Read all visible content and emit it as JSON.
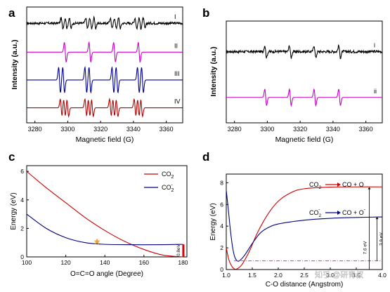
{
  "watermark": "知乎 @研青叔",
  "chart_data": [
    {
      "panel": "a",
      "type": "line",
      "xlabel": "Magnetic field (G)",
      "ylabel": "Intensity (a.u.)",
      "xlim": [
        3275,
        3370
      ],
      "x_ticks": [
        3280,
        3300,
        3320,
        3340,
        3360
      ],
      "series": [
        {
          "name": "I",
          "color": "#000000",
          "baseline": 0.86,
          "amp": 0.045,
          "noise": 0.02,
          "lines": [
            3296.5,
            3299,
            3301.5,
            3311.5,
            3314,
            3316.5,
            3326.5,
            3329,
            3331.5,
            3341.5,
            3344,
            3346.5
          ]
        },
        {
          "name": "II",
          "color": "#cc00cc",
          "baseline": 0.61,
          "amp": 0.085,
          "noise": 0,
          "lines": [
            3298.5,
            3313.5,
            3328.5,
            3343.5
          ]
        },
        {
          "name": "III",
          "color": "#000099",
          "baseline": 0.37,
          "amp": 0.11,
          "noise": 0,
          "lines": [
            3295,
            3297.5,
            3311,
            3313.5,
            3327.5,
            3330,
            3343,
            3345.5
          ]
        },
        {
          "name": "IV",
          "color": "#b30000",
          "baseline": 0.13,
          "amp": 0.075,
          "noise": 0,
          "lines": [
            3296,
            3298,
            3300,
            3311,
            3313,
            3315,
            3326,
            3328,
            3330,
            3341,
            3343,
            3345
          ]
        }
      ]
    },
    {
      "panel": "b",
      "type": "line",
      "xlabel": "Magnetic field (G)",
      "ylabel": "Intensity (a.u.)",
      "xlim": [
        3275,
        3370
      ],
      "x_ticks": [
        3280,
        3300,
        3320,
        3340,
        3360
      ],
      "series": [
        {
          "name": "i",
          "color": "#000000",
          "baseline": 0.7,
          "amp": 0.06,
          "noise": 0.025,
          "lines": [
            3299,
            3314,
            3329,
            3344
          ]
        },
        {
          "name": "ii",
          "color": "#cc00cc",
          "baseline": 0.25,
          "amp": 0.08,
          "noise": 0,
          "lines": [
            3299,
            3314,
            3329,
            3344
          ]
        }
      ]
    },
    {
      "panel": "c",
      "type": "line",
      "xlabel": "O=C=O angle (Degree)",
      "ylabel": "Energy (eV)",
      "xlim": [
        100,
        182
      ],
      "ylim": [
        0,
        6.4
      ],
      "x_ticks": [
        100,
        120,
        140,
        160,
        180
      ],
      "y_ticks": [
        0,
        2,
        4,
        6
      ],
      "legend": [
        "CO2",
        "CO2-"
      ],
      "series": [
        {
          "name": "CO2",
          "color": "#cc0000",
          "points": [
            [
              100,
              6.0
            ],
            [
              110,
              4.85
            ],
            [
              120,
              3.8
            ],
            [
              130,
              2.75
            ],
            [
              140,
              1.85
            ],
            [
              150,
              1.1
            ],
            [
              160,
              0.52
            ],
            [
              170,
              0.12
            ],
            [
              180,
              0.0
            ]
          ]
        },
        {
          "name": "CO2-",
          "color": "#000080",
          "points": [
            [
              100,
              3.0
            ],
            [
              110,
              2.0
            ],
            [
              120,
              1.35
            ],
            [
              130,
              1.0
            ],
            [
              140,
              0.88
            ],
            [
              150,
              0.86
            ],
            [
              160,
              0.85
            ],
            [
              170,
              0.86
            ],
            [
              180,
              0.88
            ]
          ]
        }
      ],
      "annotations": {
        "star": [
          136,
          1.07
        ],
        "gap_label": "0.8eV"
      }
    },
    {
      "panel": "d",
      "type": "line",
      "xlabel": "C-O distance (Angstrom)",
      "ylabel": "Energy (eV)",
      "xlim": [
        1.0,
        4.0
      ],
      "ylim": [
        0,
        8.8
      ],
      "x_ticks": [
        1.0,
        1.5,
        2.0,
        2.5,
        3.0,
        3.5,
        4.0
      ],
      "y_ticks": [
        0,
        2,
        4,
        6,
        8
      ],
      "series": [
        {
          "name": "CO2 → CO + O",
          "color": "#cc0000",
          "points": [
            [
              1.0,
              2.0
            ],
            [
              1.05,
              0.9
            ],
            [
              1.1,
              0.35
            ],
            [
              1.15,
              0.08
            ],
            [
              1.2,
              0.05
            ],
            [
              1.3,
              0.45
            ],
            [
              1.45,
              1.75
            ],
            [
              1.6,
              3.4
            ],
            [
              1.8,
              5.1
            ],
            [
              2.0,
              6.3
            ],
            [
              2.25,
              7.1
            ],
            [
              2.5,
              7.45
            ],
            [
              3.0,
              7.6
            ],
            [
              3.5,
              7.62
            ],
            [
              4.0,
              7.62
            ]
          ]
        },
        {
          "name": "CO2- → CO + O-",
          "color": "#000080",
          "points": [
            [
              1.0,
              7.3
            ],
            [
              1.04,
              5.5
            ],
            [
              1.08,
              3.6
            ],
            [
              1.12,
              2.1
            ],
            [
              1.16,
              1.2
            ],
            [
              1.2,
              0.85
            ],
            [
              1.25,
              0.8
            ],
            [
              1.35,
              1.3
            ],
            [
              1.5,
              2.4
            ],
            [
              1.65,
              3.35
            ],
            [
              1.8,
              3.85
            ],
            [
              2.0,
              4.2
            ],
            [
              2.5,
              4.55
            ],
            [
              3.0,
              4.72
            ],
            [
              3.5,
              4.8
            ],
            [
              4.0,
              4.85
            ]
          ]
        }
      ],
      "annotations": {
        "dashdot_level": 0.8,
        "arrow1_label": "7.6 eV",
        "arrow2_label": "3.9 eV"
      }
    }
  ]
}
